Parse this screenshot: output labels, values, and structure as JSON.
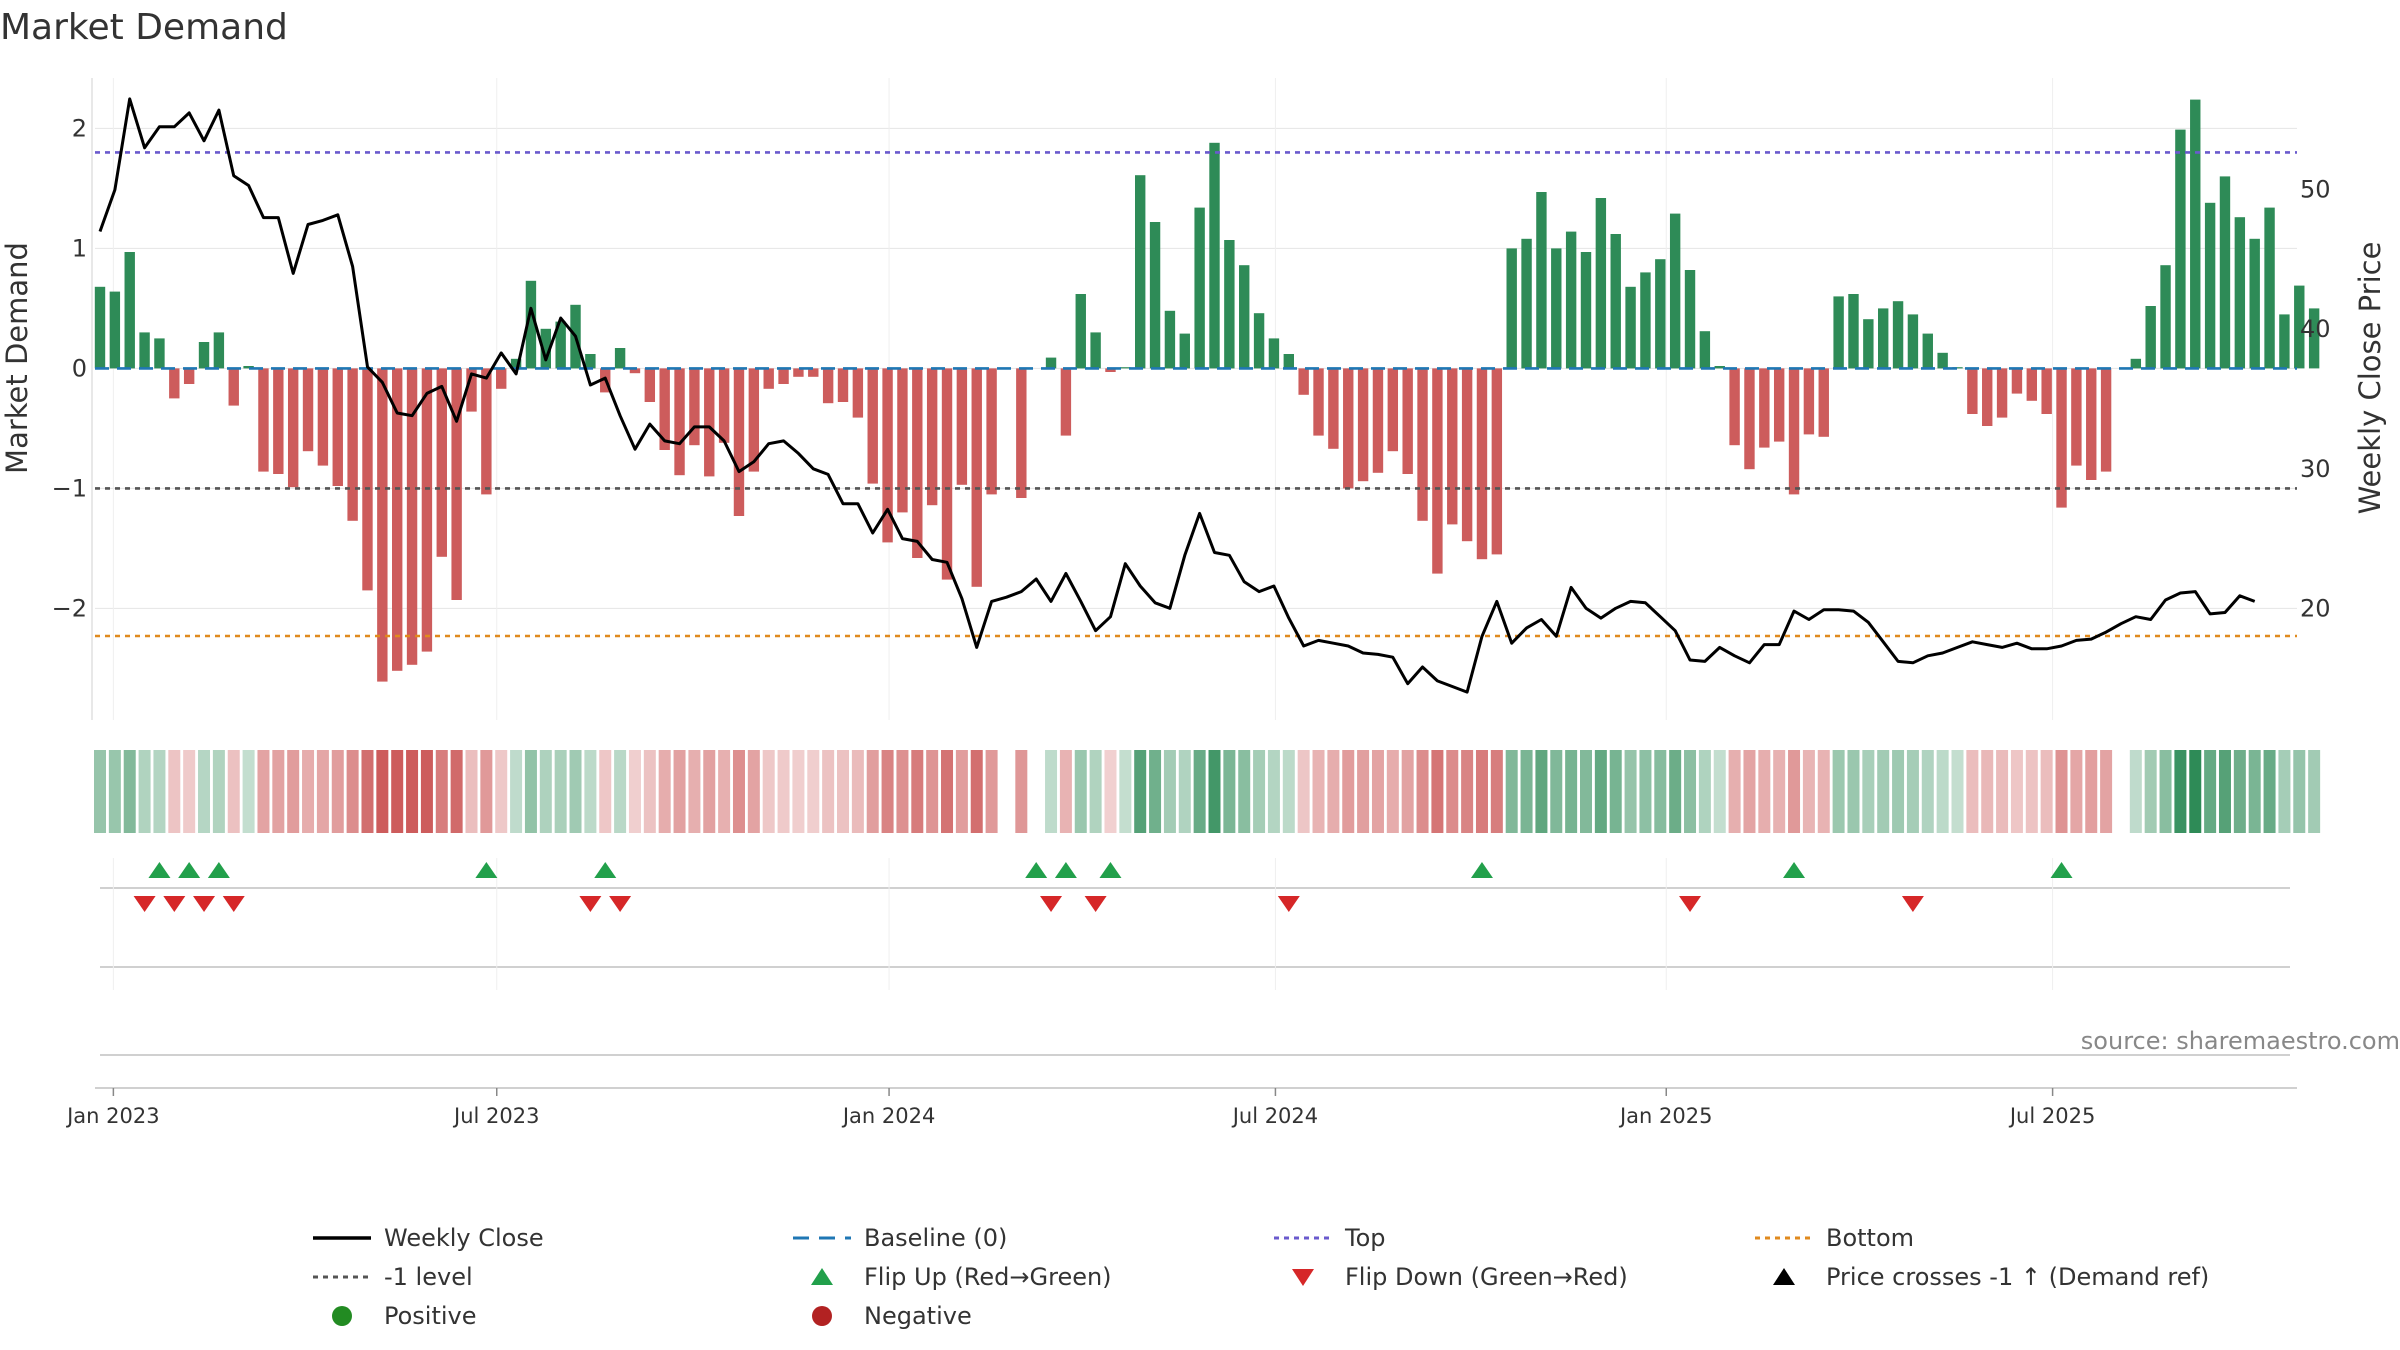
{
  "chart_data": {
    "type": "bar+line",
    "title": "Market Demand",
    "ylabel_left": "Market Demand",
    "ylabel_right": "Weekly Close Price",
    "ylim_left": [
      -2.93,
      2.42
    ],
    "ylim_right": [
      12,
      58
    ],
    "left_ticks": [
      {
        "v": 2,
        "label": "2"
      },
      {
        "v": 1,
        "label": "1"
      },
      {
        "v": 0,
        "label": "0"
      },
      {
        "v": -1,
        "label": "−1"
      },
      {
        "v": -2,
        "label": "−2"
      }
    ],
    "right_ticks": [
      {
        "v": 50,
        "label": "50"
      },
      {
        "v": 40,
        "label": "40"
      },
      {
        "v": 30,
        "label": "30"
      },
      {
        "v": 20,
        "label": "20"
      }
    ],
    "top_level": 1.8,
    "bottom_level": -2.23,
    "minus_one_level": -1,
    "start_week_index": -1,
    "x_ticks": [
      {
        "label": "Jan 2023",
        "week": 0.9
      },
      {
        "label": "Jul 2023",
        "week": 26.7
      },
      {
        "label": "Jan 2024",
        "week": 53.1
      },
      {
        "label": "Jul 2024",
        "week": 79.1
      },
      {
        "label": "Jan 2025",
        "week": 105.4
      },
      {
        "label": "Jul 2025",
        "week": 131.4
      }
    ],
    "demand": [
      0.68,
      0.64,
      0.97,
      0.3,
      0.25,
      -0.25,
      -0.13,
      0.22,
      0.3,
      -0.31,
      0.02,
      -0.86,
      -0.88,
      -0.99,
      -0.69,
      -0.81,
      -0.98,
      -1.27,
      -1.85,
      -2.61,
      -2.52,
      -2.47,
      -2.36,
      -1.57,
      -1.93,
      -0.36,
      -1.05,
      -0.17,
      0.08,
      0.73,
      0.33,
      0.39,
      0.53,
      0.12,
      -0.2,
      0.17,
      -0.04,
      -0.28,
      -0.68,
      -0.89,
      -0.64,
      -0.9,
      -0.62,
      -1.23,
      -0.86,
      -0.17,
      -0.13,
      -0.07,
      -0.07,
      -0.29,
      -0.28,
      -0.41,
      -0.96,
      -1.45,
      -1.2,
      -1.58,
      -1.14,
      -1.76,
      -0.97,
      -1.82,
      -1.05,
      0,
      -1.08,
      0,
      0.09,
      -0.56,
      0.62,
      0.3,
      -0.03,
      0.01,
      1.61,
      1.22,
      0.48,
      0.29,
      1.34,
      1.88,
      1.07,
      0.86,
      0.46,
      0.25,
      0.12,
      -0.22,
      -0.56,
      -0.67,
      -1.0,
      -0.94,
      -0.87,
      -0.69,
      -0.88,
      -1.27,
      -1.71,
      -1.3,
      -1.44,
      -1.59,
      -1.55,
      1.0,
      1.08,
      1.47,
      1.0,
      1.14,
      0.97,
      1.42,
      1.12,
      0.68,
      0.8,
      0.91,
      1.29,
      0.82,
      0.31,
      0.02,
      -0.64,
      -0.84,
      -0.66,
      -0.61,
      -1.05,
      -0.55,
      -0.57,
      0.6,
      0.62,
      0.41,
      0.5,
      0.56,
      0.45,
      0.29,
      0.13,
      0.01,
      -0.38,
      -0.48,
      -0.41,
      -0.21,
      -0.27,
      -0.38,
      -1.16,
      -0.81,
      -0.93,
      -0.86,
      0,
      0.08,
      0.52,
      0.86,
      1.99,
      2.24,
      1.38,
      1.6,
      1.26,
      1.08,
      1.34,
      0.45,
      0.69,
      0.5
    ],
    "close": [
      47.0,
      50.0,
      56.5,
      53.0,
      54.5,
      54.5,
      55.5,
      53.5,
      55.7,
      51.0,
      50.3,
      48.0,
      48.0,
      44.0,
      47.5,
      47.8,
      48.2,
      44.5,
      37.3,
      36.2,
      34.0,
      33.8,
      35.4,
      35.9,
      33.4,
      36.8,
      36.5,
      38.3,
      36.8,
      41.5,
      37.8,
      40.8,
      39.5,
      36.0,
      36.5,
      33.8,
      31.4,
      33.2,
      32.0,
      31.8,
      33.0,
      33.0,
      32.0,
      29.8,
      30.5,
      31.8,
      32.0,
      31.1,
      30.0,
      29.6,
      27.5,
      27.5,
      25.4,
      27.1,
      25.0,
      24.8,
      23.5,
      23.3,
      20.7,
      17.2,
      20.5,
      20.8,
      21.2,
      22.1,
      20.5,
      22.5,
      20.5,
      18.4,
      19.4,
      23.2,
      21.6,
      20.4,
      20.0,
      23.8,
      26.8,
      24.0,
      23.8,
      21.9,
      21.2,
      21.6,
      19.3,
      17.3,
      17.7,
      17.5,
      17.3,
      16.8,
      16.7,
      16.5,
      14.6,
      15.8,
      14.8,
      14.4,
      14.0,
      18.0,
      20.5,
      17.5,
      18.6,
      19.2,
      18.0,
      21.5,
      20.0,
      19.3,
      20.0,
      20.5,
      20.4,
      19.4,
      18.4,
      16.3,
      16.2,
      17.2,
      16.6,
      16.1,
      17.4,
      17.4,
      19.8,
      19.2,
      19.9,
      19.9,
      19.8,
      19.0,
      17.6,
      16.2,
      16.1,
      16.6,
      16.8,
      17.2,
      17.6,
      17.4,
      17.2,
      17.5,
      17.1,
      17.1,
      17.3,
      17.7,
      17.8,
      18.3,
      18.9,
      19.4,
      19.2,
      20.6,
      21.1,
      21.2,
      19.6,
      19.7,
      20.9,
      20.5
    ],
    "flip_up_weeks": [
      4,
      6,
      8,
      26,
      34,
      63,
      65,
      68,
      93,
      114,
      132
    ],
    "flip_down_weeks": [
      3,
      5,
      7,
      9,
      33,
      35,
      64,
      67,
      80,
      107,
      122
    ],
    "source": "source: sharemaestro.com",
    "legend": [
      {
        "key": "weekly_close",
        "label": "Weekly Close"
      },
      {
        "key": "baseline",
        "label": "Baseline (0)"
      },
      {
        "key": "top",
        "label": "Top"
      },
      {
        "key": "bottom",
        "label": "Bottom"
      },
      {
        "key": "minus_one",
        "label": "-1 level"
      },
      {
        "key": "flip_up",
        "label": "Flip Up (Red→Green)"
      },
      {
        "key": "flip_down",
        "label": "Flip Down (Green→Red)"
      },
      {
        "key": "price_cross",
        "label": "Price crosses -1 ↑ (Demand ref)"
      },
      {
        "key": "positive",
        "label": "Positive"
      },
      {
        "key": "negative",
        "label": "Negative"
      }
    ],
    "colors": {
      "positive_bar": "#2e8b57",
      "negative_bar": "#cd5c5c",
      "close_line": "#000000",
      "baseline": "#1f77b4",
      "top": "#6a5acd",
      "bottom": "#e08a1e",
      "minus_one": "#555555",
      "flip_up": "#22a04b",
      "flip_down": "#d62728",
      "positive_dot": "#228b22",
      "negative_dot": "#b22222",
      "grid": "#e5e5e5",
      "axis": "#d0d0d0"
    }
  }
}
